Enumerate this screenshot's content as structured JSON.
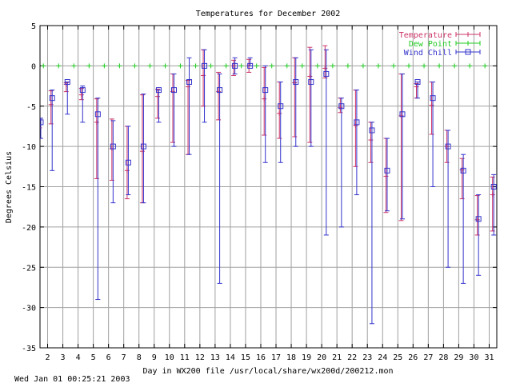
{
  "chart_data": {
    "type": "line",
    "title": "Temperatures for December 2002",
    "xlabel": "Day in WX200 file /usr/local/share/wx200d/200212.mon",
    "ylabel": "Degrees Celsius",
    "footer": "Wed Jan 01 00:25:21 2003",
    "xlim": [
      1.5,
      31.5
    ],
    "ylim": [
      -35,
      5
    ],
    "x_ticks": [
      2,
      3,
      4,
      5,
      6,
      7,
      8,
      9,
      10,
      11,
      12,
      13,
      14,
      15,
      16,
      17,
      18,
      19,
      20,
      21,
      22,
      23,
      24,
      25,
      26,
      27,
      28,
      29,
      30,
      31
    ],
    "y_ticks": [
      5,
      0,
      -5,
      -10,
      -15,
      -20,
      -25,
      -30,
      -35
    ],
    "grid": true,
    "legend_position": "top-right",
    "series": [
      {
        "name": "Temperature",
        "color": "#cc3366",
        "marker": "plus",
        "x": [
          1.55,
          2.3,
          3.3,
          4.3,
          5.3,
          6.3,
          7.3,
          8.3,
          9.3,
          10.3,
          11.3,
          12.3,
          13.3,
          14.3,
          15.3,
          16.3,
          17.3,
          18.3,
          19.3,
          20.3,
          21.3,
          22.3,
          23.3,
          24.3,
          25.3,
          26.3,
          27.3,
          28.3,
          29.3,
          30.3,
          31.3
        ],
        "mean": [
          -7.7,
          -4.8,
          -2.3,
          -3.6,
          -7.0,
          -10.3,
          -13.0,
          -10.6,
          -3.8,
          -3.2,
          -2.6,
          -1.2,
          -3.2,
          0,
          0,
          -4.1,
          -5.9,
          -2.1,
          -1.3,
          -0.3,
          -5.2,
          -7.4,
          -9.2,
          -13.7,
          -6.2,
          -2.6,
          -4.9,
          -10.0,
          -12.9,
          -19.1,
          -16.0
        ],
        "low": [
          -9,
          -7.2,
          -3.2,
          -4.2,
          -14,
          -14.2,
          -16.5,
          -17,
          -6.5,
          -9.5,
          -11,
          -5,
          -6.7,
          -1.2,
          -0.8,
          -8.6,
          -9,
          -8.8,
          -9.5,
          -1.5,
          -5.8,
          -12.5,
          -12,
          -18.2,
          -19.2,
          -4,
          -8.5,
          -12,
          -16.5,
          -21,
          -20.5
        ],
        "high": [
          -6.5,
          -3.1,
          -2.1,
          -2.8,
          -4.1,
          -6.6,
          -7.5,
          -3.6,
          -2.9,
          -1,
          -1.8,
          2,
          -0.8,
          0.7,
          0.8,
          -0.2,
          -2,
          1,
          2.3,
          2.5,
          -4,
          -3,
          -7,
          -9,
          -1,
          -2.2,
          -2,
          -8,
          -11.5,
          -16.1,
          -13.8
        ]
      },
      {
        "name": "Dew Point",
        "color": "#22cc22",
        "marker": "plus",
        "x": [
          1.55,
          2.3,
          3.3,
          4.3,
          5.3,
          6.3,
          7.3,
          8.3,
          9.3,
          10.3,
          11.3,
          12.3,
          13.3,
          14.3,
          15.3,
          16.3,
          17.3,
          18.3,
          19.3,
          20.3,
          21.3,
          22.3,
          23.3,
          24.3,
          25.3,
          26.3,
          27.3,
          28.3,
          29.3,
          30.3,
          31.3
        ],
        "mean": [
          0,
          0,
          0,
          0,
          0,
          0,
          0,
          0,
          0,
          0,
          0,
          0,
          0,
          0,
          0,
          0,
          0,
          0,
          0,
          0,
          0,
          0,
          0,
          0,
          0,
          0,
          0,
          0,
          0,
          0,
          0
        ],
        "low": [
          0,
          0,
          0,
          0,
          0,
          0,
          0,
          0,
          0,
          0,
          0,
          0,
          0,
          0,
          0,
          0,
          0,
          0,
          0,
          0,
          0,
          0,
          0,
          0,
          0,
          0,
          0,
          0,
          0,
          0,
          0
        ],
        "high": [
          0,
          0,
          0,
          0,
          0,
          0,
          0,
          0,
          0,
          0,
          0,
          0,
          0,
          0,
          0,
          0,
          0,
          0,
          0,
          0,
          0,
          0,
          0,
          0,
          0,
          0,
          0,
          0,
          0,
          0,
          0
        ]
      },
      {
        "name": "Wind Chill",
        "color": "#3333cc",
        "marker": "square",
        "x": [
          1.55,
          2.3,
          3.3,
          4.3,
          5.3,
          6.3,
          7.3,
          8.3,
          9.3,
          10.3,
          11.3,
          12.3,
          13.3,
          14.3,
          15.3,
          16.3,
          17.3,
          18.3,
          19.3,
          20.3,
          21.3,
          22.3,
          23.3,
          24.3,
          25.3,
          26.3,
          27.3,
          28.3,
          29.3,
          30.3,
          31.3
        ],
        "mean": [
          -7,
          -4,
          -2,
          -3,
          -6,
          -10,
          -12,
          -10,
          -3,
          -3,
          -2,
          0,
          -3,
          0,
          0,
          -3,
          -5,
          -2,
          -2,
          -1,
          -5,
          -7,
          -8,
          -13,
          -6,
          -2,
          -4,
          -10,
          -13,
          -19,
          -15
        ],
        "low": [
          -9,
          -13,
          -6,
          -7,
          -29,
          -17,
          -16,
          -17,
          -7,
          -10,
          -11,
          -7,
          -27,
          -1,
          0,
          -12,
          -12,
          -10,
          -10,
          -21,
          -20,
          -16,
          -32,
          -18,
          -19,
          -4,
          -15,
          -25,
          -27,
          -26,
          -21
        ],
        "high": [
          -6.5,
          -3,
          -2,
          -2.5,
          -4,
          -6.8,
          -7.5,
          -3.5,
          -3,
          -1,
          1,
          2,
          -1,
          1,
          1,
          0,
          -2,
          1,
          2,
          2,
          -4,
          -3,
          -7,
          -9,
          -1,
          -2,
          -2,
          -8,
          -11,
          -16,
          -13.5
        ]
      }
    ]
  }
}
